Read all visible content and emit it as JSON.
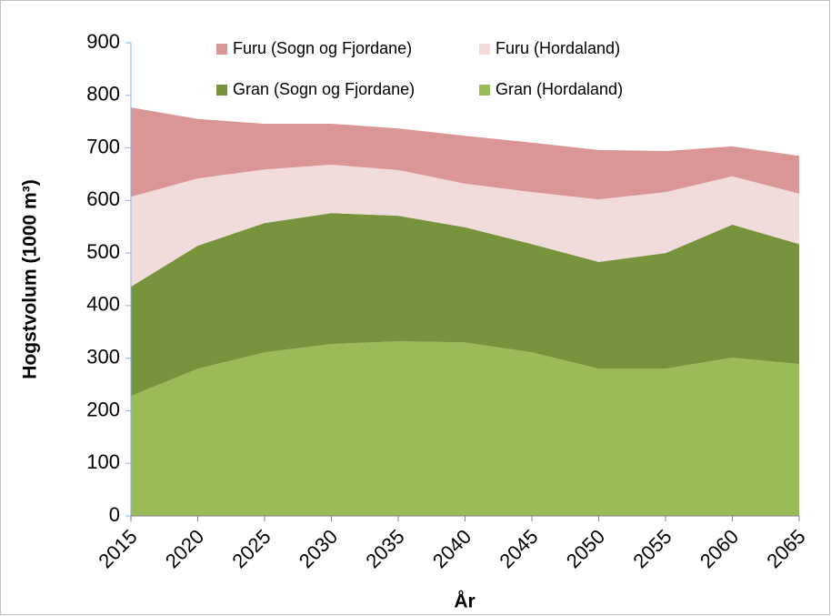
{
  "chart_data": {
    "type": "stacked_area",
    "x_label": "År",
    "y_label": "Hogstvolum (1000 m³)",
    "categories": [
      "2015",
      "2020",
      "2025",
      "2030",
      "2035",
      "2040",
      "2045",
      "2050",
      "2055",
      "2060",
      "2065"
    ],
    "series": [
      {
        "name": "Gran (Hordaland)",
        "color": "#9bbb59",
        "values": [
          228,
          280,
          311,
          327,
          332,
          330,
          311,
          280,
          280,
          301,
          289
        ]
      },
      {
        "name": "Gran (Sogn og Fjordane)",
        "color": "#77933c",
        "values": [
          208,
          234,
          246,
          249,
          239,
          219,
          206,
          203,
          220,
          253,
          228
        ]
      },
      {
        "name": "Furu (Hordaland)",
        "color": "#f2dcdb",
        "values": [
          171,
          128,
          102,
          92,
          87,
          83,
          99,
          119,
          116,
          92,
          96
        ]
      },
      {
        "name": "Furu (Sogn og Fjordane)",
        "color": "#d99694",
        "values": [
          170,
          113,
          87,
          78,
          79,
          91,
          94,
          94,
          78,
          57,
          72
        ]
      }
    ],
    "ylim": [
      0,
      900
    ],
    "yticks": [
      0,
      100,
      200,
      300,
      400,
      500,
      600,
      700,
      800,
      900
    ],
    "legend": "top"
  }
}
